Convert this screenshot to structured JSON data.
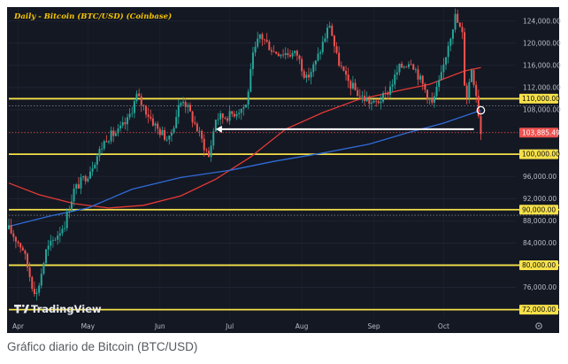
{
  "chart_data": {
    "type": "candlestick",
    "title": "Daily - Bitcoin (BTC/USD) (Coinbase)",
    "ylim": [
      70500,
      126500
    ],
    "y_ticks": [
      "124,000.00",
      "120,000.00",
      "116,000.00",
      "112,000.00",
      "108,000.00",
      "96,000.00",
      "92,000.00",
      "88,000.00",
      "84,000.00",
      "76,000.00"
    ],
    "x_ticks": [
      "Apr",
      "May",
      "Jun",
      "Jul",
      "Aug",
      "Sep",
      "Oct"
    ],
    "horizontal_levels": [
      {
        "value": 110000,
        "label": "110,000.00"
      },
      {
        "value": 100000,
        "label": "100,000.00"
      },
      {
        "value": 90000,
        "label": "90,000.00"
      },
      {
        "value": 80000,
        "label": "80,000.00"
      },
      {
        "value": 72000,
        "label": "72,000.00"
      }
    ],
    "dotted_levels": [
      108700,
      89000
    ],
    "current_price": {
      "value": 103885.49,
      "label": "103,885.49"
    },
    "price_path": [
      [
        "2025-03-28",
        86500
      ],
      [
        "2025-04-03",
        83000
      ],
      [
        "2025-04-07",
        76500
      ],
      [
        "2025-04-09",
        74800
      ],
      [
        "2025-04-13",
        82500
      ],
      [
        "2025-04-21",
        87500
      ],
      [
        "2025-04-25",
        93500
      ],
      [
        "2025-05-01",
        96500
      ],
      [
        "2025-05-09",
        103000
      ],
      [
        "2025-05-14",
        104000
      ],
      [
        "2025-05-18",
        106000
      ],
      [
        "2025-05-22",
        110500
      ],
      [
        "2025-05-25",
        108500
      ],
      [
        "2025-05-31",
        104500
      ],
      [
        "2025-06-05",
        102500
      ],
      [
        "2025-06-09",
        108500
      ],
      [
        "2025-06-11",
        110000
      ],
      [
        "2025-06-17",
        104500
      ],
      [
        "2025-06-22",
        99500
      ],
      [
        "2025-06-25",
        106500
      ],
      [
        "2025-07-01",
        107000
      ],
      [
        "2025-07-08",
        108800
      ],
      [
        "2025-07-11",
        117500
      ],
      [
        "2025-07-14",
        121500
      ],
      [
        "2025-07-20",
        118500
      ],
      [
        "2025-07-30",
        118000
      ],
      [
        "2025-08-03",
        113500
      ],
      [
        "2025-08-07",
        116500
      ],
      [
        "2025-08-13",
        123500
      ],
      [
        "2025-08-16",
        117500
      ],
      [
        "2025-08-20",
        113500
      ],
      [
        "2025-08-26",
        110500
      ],
      [
        "2025-09-01",
        109000
      ],
      [
        "2025-09-06",
        110500
      ],
      [
        "2025-09-12",
        115500
      ],
      [
        "2025-09-17",
        117000
      ],
      [
        "2025-09-22",
        112500
      ],
      [
        "2025-09-26",
        109000
      ],
      [
        "2025-09-30",
        114000
      ],
      [
        "2025-10-03",
        120000
      ],
      [
        "2025-10-06",
        124800
      ],
      [
        "2025-10-09",
        121500
      ],
      [
        "2025-10-10",
        113000
      ],
      [
        "2025-10-11",
        110500
      ],
      [
        "2025-10-13",
        115500
      ],
      [
        "2025-10-15",
        111000
      ],
      [
        "2025-10-17",
        103885
      ]
    ],
    "series": [
      {
        "color": "#e53935",
        "values": [
          [
            "2025-03-28",
            94800
          ],
          [
            "2025-04-10",
            92700
          ],
          [
            "2025-04-25",
            91100
          ],
          [
            "2025-05-10",
            90300
          ],
          [
            "2025-05-25",
            90800
          ],
          [
            "2025-06-10",
            92500
          ],
          [
            "2025-06-25",
            95500
          ],
          [
            "2025-07-10",
            99500
          ],
          [
            "2025-07-25",
            104500
          ],
          [
            "2025-08-10",
            107500
          ],
          [
            "2025-08-25",
            109800
          ],
          [
            "2025-09-10",
            111300
          ],
          [
            "2025-09-25",
            112600
          ],
          [
            "2025-10-10",
            115000
          ],
          [
            "2025-10-17",
            115600
          ]
        ]
      },
      {
        "color": "#2f6bd8",
        "values": [
          [
            "2025-03-28",
            87000
          ],
          [
            "2025-04-15",
            88900
          ],
          [
            "2025-05-01",
            90300
          ],
          [
            "2025-05-20",
            93700
          ],
          [
            "2025-06-10",
            95800
          ],
          [
            "2025-07-01",
            97100
          ],
          [
            "2025-07-20",
            98700
          ],
          [
            "2025-08-10",
            100200
          ],
          [
            "2025-08-30",
            101800
          ],
          [
            "2025-09-15",
            103800
          ],
          [
            "2025-10-01",
            105600
          ],
          [
            "2025-10-17",
            107900
          ]
        ]
      }
    ],
    "annotations": {
      "arrow": {
        "from": [
          "2025-10-14",
          104500
        ],
        "to": [
          "2025-06-25",
          104500
        ]
      },
      "circle": [
        "2025-10-17",
        107900
      ]
    },
    "logo": "TradingView"
  },
  "caption": "Gráfico diario de Bitcoin (BTC/USD)",
  "colors": {
    "background": "#141823",
    "bullish": "#26a69a",
    "bearish": "#ef5350",
    "level_line": "#f5e04a",
    "accent_title": "#f5c400"
  },
  "icons": {
    "settings": "gear-icon"
  }
}
